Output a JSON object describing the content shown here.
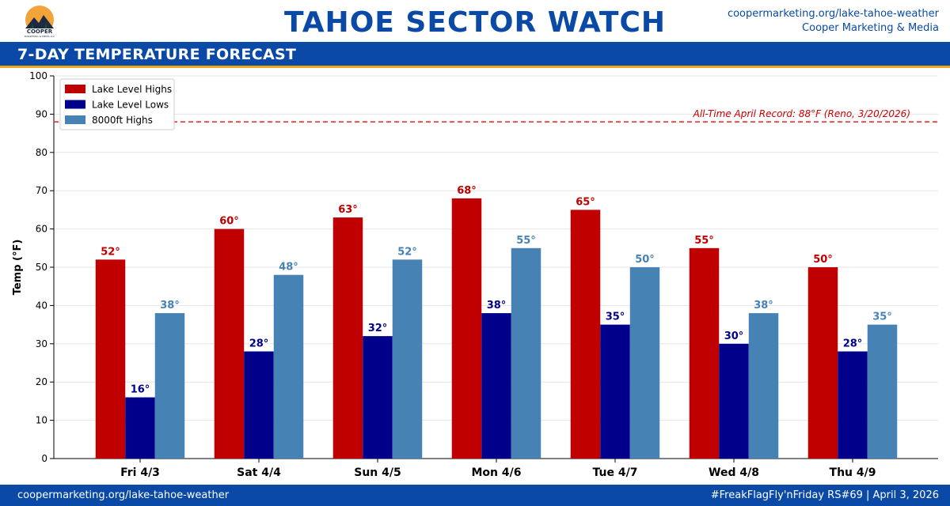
{
  "header": {
    "logo_text": "COOPER",
    "logo_subtext": "MARKETING & MEDIA LLC",
    "title": "TAHOE SECTOR WATCH",
    "url": "coopermarketing.org/lake-tahoe-weather",
    "brand": "Cooper Marketing & Media"
  },
  "section": {
    "title": "7-DAY TEMPERATURE FORECAST"
  },
  "footer": {
    "left": "coopermarketing.org/lake-tahoe-weather",
    "right": "#FreakFlagFly'nFriday RS#69 | April 3, 2026"
  },
  "colors": {
    "brand_blue": "#0a4aa6",
    "accent_gold": "#e8a91b",
    "lake_highs": "#c00000",
    "lake_lows": "#00008b",
    "highs_8000": "#4682b4",
    "record_line": "#e8202a"
  },
  "chart_data": {
    "type": "bar",
    "title": "",
    "xlabel": "",
    "ylabel": "Temp (°F)",
    "ylim": [
      0,
      100
    ],
    "yticks": [
      0,
      10,
      20,
      30,
      40,
      50,
      60,
      70,
      80,
      90,
      100
    ],
    "grid": true,
    "legend_position": "top-left",
    "categories": [
      "Fri 4/3",
      "Sat 4/4",
      "Sun 4/5",
      "Mon 4/6",
      "Tue 4/7",
      "Wed 4/8",
      "Thu 4/9"
    ],
    "series": [
      {
        "name": "Lake Level Highs",
        "color": "#c00000",
        "values": [
          52,
          60,
          63,
          68,
          65,
          55,
          50
        ],
        "labels": [
          "52°",
          "60°",
          "63°",
          "68°",
          "65°",
          "55°",
          "50°"
        ]
      },
      {
        "name": "Lake Level Lows",
        "color": "#00008b",
        "values": [
          16,
          28,
          32,
          38,
          35,
          30,
          28
        ],
        "labels": [
          "16°",
          "28°",
          "32°",
          "38°",
          "35°",
          "30°",
          "28°"
        ]
      },
      {
        "name": "8000ft Highs",
        "color": "#4682b4",
        "values": [
          38,
          48,
          52,
          55,
          50,
          38,
          35
        ],
        "labels": [
          "38°",
          "48°",
          "52°",
          "55°",
          "50°",
          "38°",
          "35°"
        ]
      }
    ],
    "reference_line": {
      "value": 88,
      "label": "All-Time April Record: 88°F (Reno, 3/20/2026)",
      "color": "#e8202a",
      "style": "dashed"
    }
  }
}
